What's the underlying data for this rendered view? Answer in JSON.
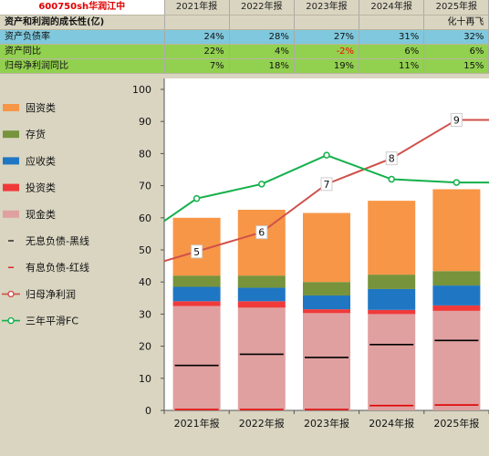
{
  "header": {
    "stock_title": "600750sh华润江中",
    "years": [
      "2021年报",
      "2022年报",
      "2023年报",
      "2024年报",
      "2025年报"
    ],
    "section_title": "资产和利润的成长性(亿)",
    "note": "化十再飞",
    "rows": [
      {
        "label": "资产负债率",
        "values": [
          "24%",
          "28%",
          "27%",
          "31%",
          "32%"
        ]
      },
      {
        "label": "资产同比",
        "values": [
          "22%",
          "4%",
          "-2%",
          "6%",
          "6%"
        ]
      },
      {
        "label": "归母净利润同比",
        "values": [
          "7%",
          "18%",
          "19%",
          "11%",
          "15%"
        ]
      }
    ]
  },
  "colors": {
    "fixed_assets": "#f79646",
    "inventory": "#77933c",
    "receivables": "#1f77c4",
    "investment": "#f03a3a",
    "cash": "#e0a0a0",
    "profit_line": "#d0504a",
    "fc_line": "#13b04a",
    "interest_free_debt": "#000000",
    "interest_debt": "#e00000"
  },
  "chart_data": {
    "type": "bar",
    "categories": [
      "2021年报",
      "2022年报",
      "2023年报",
      "2024年报",
      "2025年报"
    ],
    "ylim": [
      0,
      100
    ],
    "yticks": [
      0,
      10,
      20,
      30,
      40,
      50,
      60,
      70,
      80,
      90,
      100
    ],
    "stacked_series": [
      {
        "name": "现金类",
        "values": [
          32.5,
          32.0,
          30.3,
          30.0,
          31.0
        ]
      },
      {
        "name": "投资类",
        "values": [
          1.5,
          2.0,
          1.2,
          1.3,
          1.7
        ]
      },
      {
        "name": "应收类",
        "values": [
          4.5,
          4.2,
          4.3,
          6.5,
          6.2
        ]
      },
      {
        "name": "存货",
        "values": [
          3.5,
          3.8,
          4.2,
          4.5,
          4.5
        ]
      },
      {
        "name": "固资类",
        "values": [
          18.0,
          20.5,
          21.5,
          23.0,
          25.5
        ]
      }
    ],
    "marker_series": [
      {
        "name": "无息负债-黑线",
        "values": [
          14.0,
          17.5,
          16.5,
          20.5,
          21.8
        ]
      },
      {
        "name": "有息负债-红线",
        "values": [
          0.0,
          0.0,
          0.0,
          1.5,
          1.7
        ]
      }
    ],
    "line_series": [
      {
        "name": "归母净利润",
        "values": [
          49.5,
          55.5,
          70.5,
          78.5,
          90.5
        ],
        "labels": [
          "5",
          "6",
          "7",
          "8",
          "9"
        ]
      },
      {
        "name": "三年平滑FC",
        "values": [
          66.0,
          70.5,
          79.5,
          72.0,
          71.0
        ]
      }
    ],
    "legend_position": "left",
    "legend": [
      "固资类",
      "存货",
      "应收类",
      "投资类",
      "现金类",
      "无息负债-黑线",
      "有息负债-红线",
      "归母净利润",
      "三年平滑FC"
    ]
  }
}
